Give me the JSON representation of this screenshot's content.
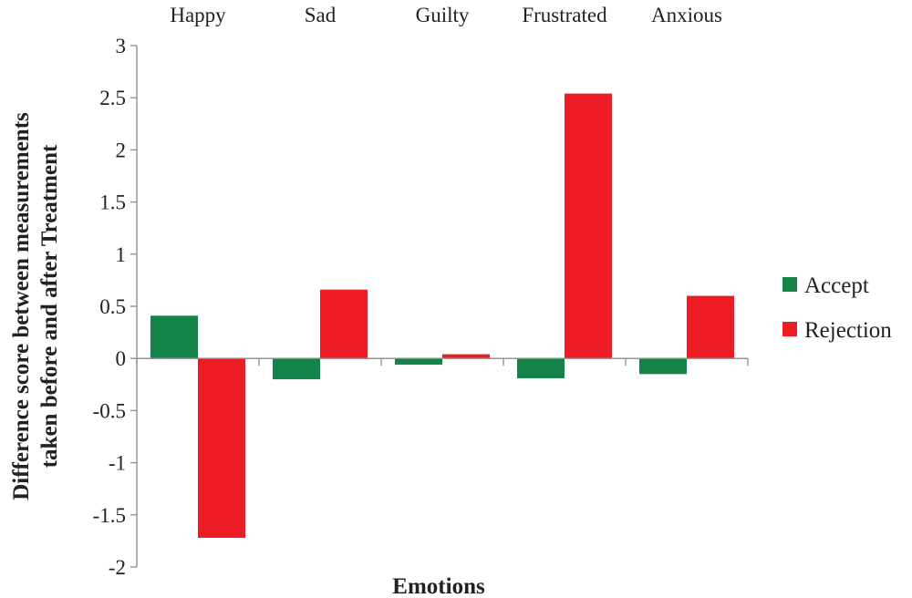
{
  "chart_data": {
    "type": "bar",
    "categories": [
      "Happy",
      "Sad",
      "Guilty",
      "Frustrated",
      "Anxious"
    ],
    "series": [
      {
        "name": "Accept",
        "values": [
          0.41,
          -0.2,
          -0.06,
          -0.19,
          -0.15
        ],
        "color": "#13834a"
      },
      {
        "name": "Rejection",
        "values": [
          -1.72,
          0.66,
          0.04,
          2.54,
          0.6
        ],
        "color": "#ed1c24"
      }
    ],
    "title": "",
    "xlabel": "Emotions",
    "ylabel": "Difference score between measurements taken before and after Treatment",
    "ylabel_lines": [
      "Difference score between measurements",
      "taken before and after Treatment"
    ],
    "ylim": [
      -2,
      3
    ],
    "yticks": [
      3,
      2.5,
      2,
      1.5,
      1,
      0.5,
      0,
      -0.5,
      -1,
      -1.5,
      -2
    ],
    "ytick_labels": [
      "3",
      "2.5",
      "2",
      "1.5",
      "1",
      "0.5",
      "0",
      "-0.5",
      "-1",
      "-1.5",
      "-2"
    ],
    "category_label_position": "top",
    "legend_position": "right",
    "grid": false
  }
}
